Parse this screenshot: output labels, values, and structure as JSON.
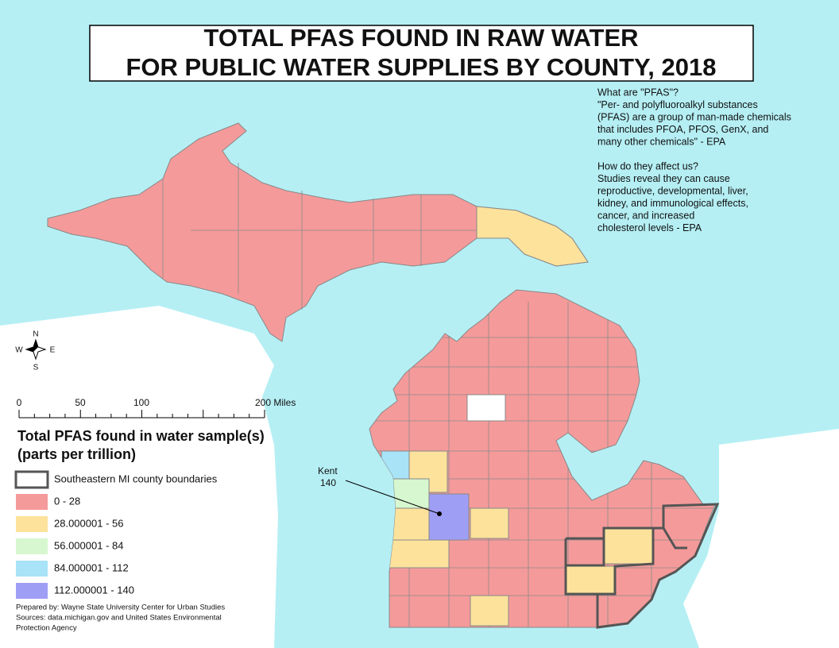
{
  "title": [
    "TOTAL PFAS FOUND IN RAW WATER",
    "FOR PUBLIC WATER SUPPLIES BY COUNTY, 2018"
  ],
  "info": [
    [
      "What are \"PFAS\"?",
      "\"Per- and polyfluoroalkyl substances",
      "(PFAS) are a group of man-made chemicals",
      "that includes PFOA, PFOS, GenX, and",
      "many other chemicals\" - EPA"
    ],
    [
      "How do they affect us?",
      "Studies reveal they can cause",
      "reproductive, developmental, liver,",
      "kidney, and immunological effects,",
      "cancer, and increased",
      "cholesterol levels - EPA"
    ]
  ],
  "compass": {
    "n": "N",
    "s": "S",
    "e": "E",
    "w": "W"
  },
  "scale_bar": {
    "labels": [
      "0",
      "50",
      "100",
      "200 Miles"
    ]
  },
  "legend": {
    "title": [
      "Total PFAS found in water sample(s)",
      "(parts per trillion)"
    ],
    "items": [
      {
        "label": "Southeastern MI county boundaries",
        "color": "#ffffff",
        "outline": "#555555"
      },
      {
        "label": "0 - 28",
        "color": "#f59a9a"
      },
      {
        "label": "28.000001 - 56",
        "color": "#fde29c"
      },
      {
        "label": "56.000001 - 84",
        "color": "#d6f7cf"
      },
      {
        "label": "84.000001 - 112",
        "color": "#a8e3f7"
      },
      {
        "label": "112.000001 - 140",
        "color": "#9f9ef5"
      }
    ]
  },
  "callout": {
    "name": "Kent",
    "value": "140"
  },
  "credits": [
    "Prepared by: Wayne State University Center for Urban Studies",
    "Sources: data.michigan.gov and United States Environmental",
    "Protection Agency"
  ]
}
